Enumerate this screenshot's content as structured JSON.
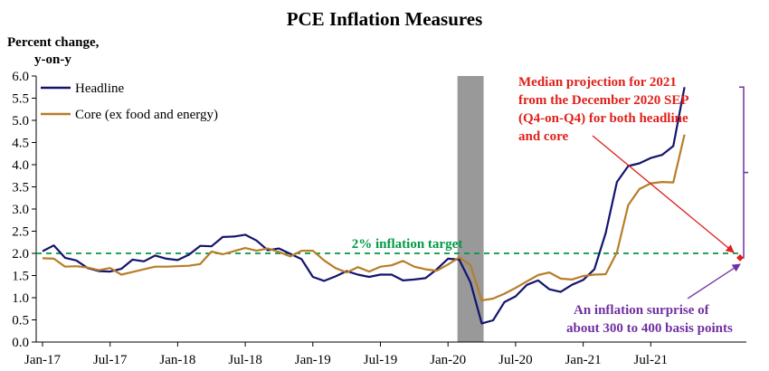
{
  "chart_data": {
    "type": "line",
    "title": "PCE Inflation Measures",
    "ylabel_line1": "Percent change,",
    "ylabel_line2": "y-on-y",
    "xlabel": "",
    "ylim": [
      0.0,
      6.0
    ],
    "yticks": [
      "0.0",
      "0.5",
      "1.0",
      "1.5",
      "2.0",
      "2.5",
      "3.0",
      "3.5",
      "4.0",
      "4.5",
      "5.0",
      "5.5",
      "6.0"
    ],
    "xtick_labels": [
      "Jan-17",
      "Jul-17",
      "Jan-18",
      "Jul-18",
      "Jan-19",
      "Jul-19",
      "Jan-20",
      "Jul-20",
      "Jan-21",
      "Jul-21"
    ],
    "x": [
      "Jan-17",
      "Feb-17",
      "Mar-17",
      "Apr-17",
      "May-17",
      "Jun-17",
      "Jul-17",
      "Aug-17",
      "Sep-17",
      "Oct-17",
      "Nov-17",
      "Dec-17",
      "Jan-18",
      "Feb-18",
      "Mar-18",
      "Apr-18",
      "May-18",
      "Jun-18",
      "Jul-18",
      "Aug-18",
      "Sep-18",
      "Oct-18",
      "Nov-18",
      "Dec-18",
      "Jan-19",
      "Feb-19",
      "Mar-19",
      "Apr-19",
      "May-19",
      "Jun-19",
      "Jul-19",
      "Aug-19",
      "Sep-19",
      "Oct-19",
      "Nov-19",
      "Dec-19",
      "Jan-20",
      "Feb-20",
      "Mar-20",
      "Apr-20",
      "May-20",
      "Jun-20",
      "Jul-20",
      "Aug-20",
      "Sep-20",
      "Oct-20",
      "Nov-20",
      "Dec-20",
      "Jan-21",
      "Feb-21",
      "Mar-21",
      "Apr-21",
      "May-21",
      "Jun-21",
      "Jul-21",
      "Aug-21",
      "Sep-21",
      "Oct-21"
    ],
    "series": [
      {
        "name": "Headline",
        "color": "#14146e",
        "values": [
          2.05,
          2.18,
          1.9,
          1.84,
          1.67,
          1.6,
          1.59,
          1.65,
          1.86,
          1.82,
          1.95,
          1.88,
          1.85,
          1.97,
          2.17,
          2.16,
          2.37,
          2.38,
          2.42,
          2.29,
          2.07,
          2.11,
          1.99,
          1.87,
          1.47,
          1.38,
          1.48,
          1.6,
          1.52,
          1.47,
          1.52,
          1.52,
          1.39,
          1.41,
          1.44,
          1.64,
          1.88,
          1.86,
          1.34,
          0.42,
          0.49,
          0.9,
          1.03,
          1.29,
          1.39,
          1.19,
          1.13,
          1.29,
          1.4,
          1.64,
          2.46,
          3.61,
          3.97,
          4.03,
          4.15,
          4.22,
          4.42,
          5.75
        ]
      },
      {
        "name": "Core (ex food and energy)",
        "color": "#b87d28",
        "values": [
          1.89,
          1.88,
          1.7,
          1.71,
          1.68,
          1.62,
          1.67,
          1.52,
          1.58,
          1.64,
          1.7,
          1.7,
          1.71,
          1.72,
          1.76,
          2.04,
          1.98,
          2.05,
          2.12,
          2.06,
          2.11,
          2.03,
          1.93,
          2.06,
          2.06,
          1.84,
          1.67,
          1.57,
          1.69,
          1.59,
          1.7,
          1.73,
          1.83,
          1.7,
          1.64,
          1.61,
          1.75,
          1.91,
          1.73,
          0.94,
          0.98,
          1.09,
          1.22,
          1.37,
          1.51,
          1.57,
          1.43,
          1.41,
          1.49,
          1.52,
          1.53,
          2.02,
          3.09,
          3.45,
          3.58,
          3.61,
          3.6,
          4.68
        ]
      }
    ],
    "target_line": {
      "value": 2.0,
      "label": "2% inflation target",
      "color": "#009a44"
    },
    "recession_shade": {
      "start": "Feb-20",
      "end": "Apr-20",
      "color": "#999999"
    },
    "projection_marker": {
      "value": 1.9,
      "color": "#e0201b"
    },
    "surprise_bracket": {
      "low": 1.9,
      "high": 5.75,
      "color": "#7030a0"
    },
    "annotations": {
      "projection_lines": [
        "Median projection for 2021",
        "from the December 2020 SEP",
        "(Q4-on-Q4) for both headline",
        "and core"
      ],
      "surprise_lines": [
        "An inflation surprise of",
        "about 300 to 400 basis points"
      ],
      "projection_color": "#e0201b",
      "surprise_color": "#7030a0"
    },
    "legend_placement": "top-left",
    "grid": false
  }
}
